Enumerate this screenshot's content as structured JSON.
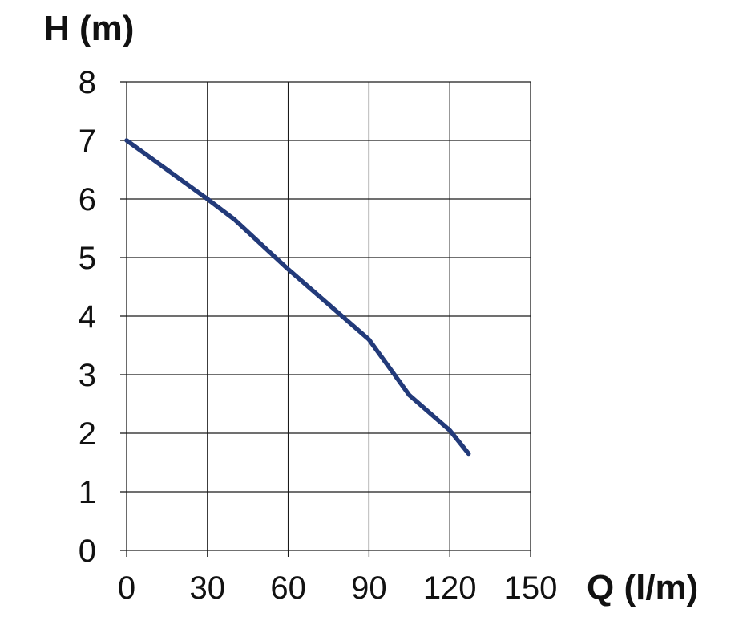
{
  "chart_data": {
    "type": "line",
    "title": "",
    "xlabel": "Q (l/m)",
    "ylabel": "H (m)",
    "xlim": [
      0,
      150
    ],
    "ylim": [
      0,
      8
    ],
    "x_ticks": [
      "0",
      "30",
      "60",
      "90",
      "120",
      "150"
    ],
    "y_ticks": [
      "0",
      "1",
      "2",
      "3",
      "4",
      "5",
      "6",
      "7",
      "8"
    ],
    "grid": true,
    "legend": "none",
    "series": [
      {
        "color": "#223a7a",
        "x": [
          0,
          30,
          40,
          60,
          90,
          105,
          120,
          127
        ],
        "y": [
          7.0,
          6.0,
          5.65,
          4.8,
          3.6,
          2.65,
          2.05,
          1.65
        ]
      }
    ]
  }
}
